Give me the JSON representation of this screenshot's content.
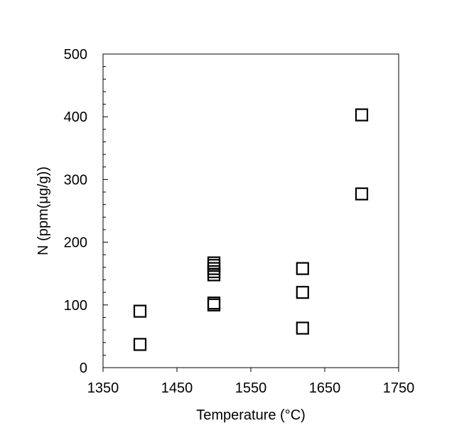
{
  "chart_data": {
    "type": "scatter",
    "title": "",
    "xlabel": "Temperature (°C)",
    "ylabel": "N (ppm(μg/g))",
    "xlim": [
      1350,
      1750
    ],
    "ylim": [
      0,
      500
    ],
    "xticks": [
      1350,
      1450,
      1550,
      1650,
      1750
    ],
    "yticks": [
      0,
      100,
      200,
      300,
      400,
      500
    ],
    "y_minor_step": 20,
    "grid": false,
    "legend": "none",
    "marker": "open-square",
    "marker_color": "#000000",
    "series": [
      {
        "points": [
          {
            "x": 1400,
            "y": 37
          },
          {
            "x": 1400,
            "y": 90
          },
          {
            "x": 1500,
            "y": 100
          },
          {
            "x": 1500,
            "y": 103
          },
          {
            "x": 1500,
            "y": 148
          },
          {
            "x": 1500,
            "y": 153
          },
          {
            "x": 1500,
            "y": 158
          },
          {
            "x": 1500,
            "y": 163
          },
          {
            "x": 1500,
            "y": 167
          },
          {
            "x": 1620,
            "y": 63
          },
          {
            "x": 1620,
            "y": 120
          },
          {
            "x": 1620,
            "y": 158
          },
          {
            "x": 1700,
            "y": 277
          },
          {
            "x": 1700,
            "y": 403
          }
        ]
      }
    ]
  }
}
